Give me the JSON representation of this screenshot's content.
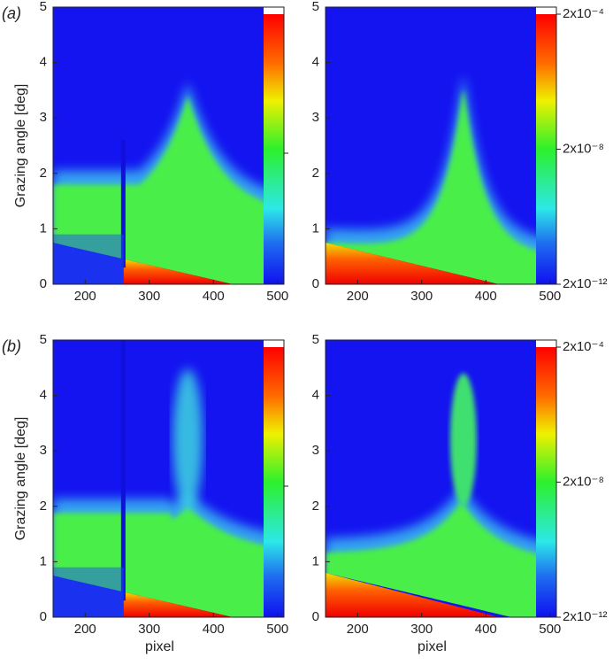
{
  "chart_data": [
    {
      "type": "heatmap",
      "panel_label": "(a)",
      "y_label": "Grazing angle  [deg]",
      "xlim": [
        150,
        510
      ],
      "xticks": [
        200,
        300,
        400,
        500
      ],
      "ylim": [
        0,
        5
      ],
      "yticks": [
        0,
        1,
        2,
        3,
        4,
        5
      ]
    },
    {
      "type": "heatmap",
      "xlim": [
        150,
        510
      ],
      "xticks": [
        200,
        300,
        400,
        500
      ],
      "ylim": [
        0,
        5
      ],
      "yticks": [
        0,
        1,
        2,
        3,
        4,
        5
      ],
      "colorbar": {
        "zlim": [
          2e-12,
          0.0002
        ],
        "log": true,
        "zticks": [
          {
            "value": 0.0002,
            "label": "2x10⁻⁴"
          },
          {
            "value": 2e-08,
            "label": "2x10⁻⁸"
          },
          {
            "value": 2e-12,
            "label": "2x10⁻¹²"
          }
        ]
      }
    },
    {
      "type": "heatmap",
      "panel_label": "(b)",
      "y_label": "Grazing angle  [deg]",
      "x_label": "pixel",
      "xlim": [
        150,
        510
      ],
      "xticks": [
        200,
        300,
        400,
        500
      ],
      "ylim": [
        0,
        5
      ],
      "yticks": [
        0,
        1,
        2,
        3,
        4,
        5
      ]
    },
    {
      "type": "heatmap",
      "x_label": "pixel",
      "xlim": [
        150,
        510
      ],
      "xticks": [
        200,
        300,
        400,
        500
      ],
      "ylim": [
        0,
        5
      ],
      "yticks": [
        0,
        1,
        2,
        3,
        4,
        5
      ],
      "colorbar": {
        "zlim": [
          2e-12,
          0.0002
        ],
        "log": true,
        "zticks": [
          {
            "value": 0.0002,
            "label": "2x10⁻⁴"
          },
          {
            "value": 2e-08,
            "label": "2x10⁻⁸"
          },
          {
            "value": 2e-12,
            "label": "2x10⁻¹²"
          }
        ]
      }
    }
  ]
}
